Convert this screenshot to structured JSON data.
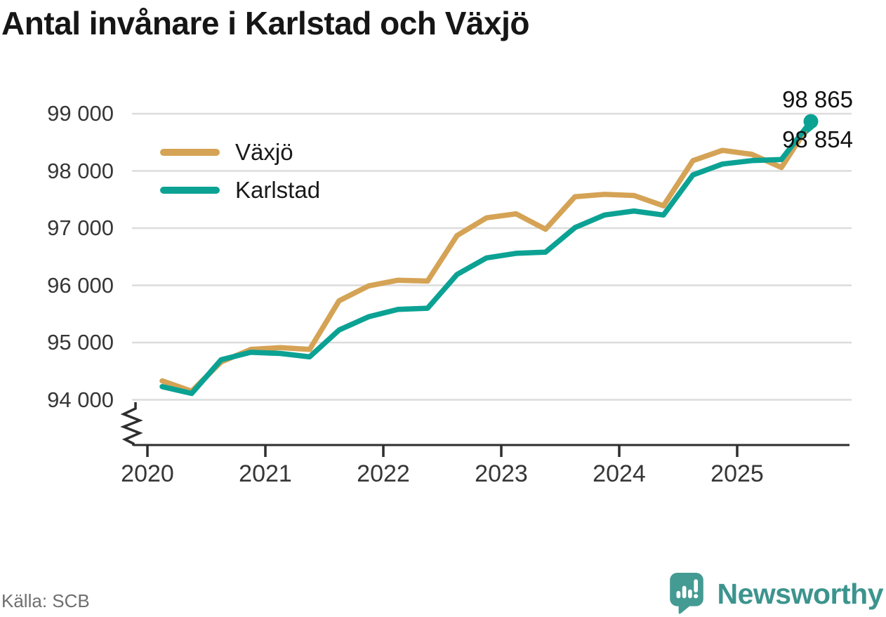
{
  "title": "Antal invånare i Karlstad och Växjö",
  "source": "Källa: SCB",
  "branding": {
    "name": "Newsworthy",
    "icon": "bar-chart-speech-bubble-icon",
    "color": "#3c948e"
  },
  "chart_data": {
    "type": "line",
    "title": "Antal invånare i Karlstad och Växjö",
    "grid": "horizontal",
    "grid_color": "#dcdcdc",
    "axis_color": "#2e2e2e",
    "legend_position": "top-left",
    "x_axis": {
      "ticks": [
        2020,
        2021,
        2022,
        2023,
        2024,
        2025
      ],
      "tick_labels": [
        "2020",
        "2021",
        "2022",
        "2023",
        "2024",
        "2025"
      ],
      "range": [
        2019.85,
        2025.97
      ]
    },
    "y_axis": {
      "ticks": [
        94000,
        95000,
        96000,
        97000,
        98000,
        99000
      ],
      "tick_labels": [
        "94 000",
        "95 000",
        "96 000",
        "97 000",
        "98 000",
        "99 000"
      ],
      "range_shown": [
        94000,
        99000
      ],
      "axis_break_at_bottom": true
    },
    "x": [
      2020.125,
      2020.375,
      2020.625,
      2020.875,
      2021.125,
      2021.375,
      2021.625,
      2021.875,
      2022.125,
      2022.375,
      2022.625,
      2022.875,
      2023.125,
      2023.375,
      2023.625,
      2023.875,
      2024.125,
      2024.375,
      2024.625,
      2024.875,
      2025.125,
      2025.375,
      2025.625
    ],
    "series": [
      {
        "name": "Växjö",
        "color": "#d5a355",
        "values": [
          94330,
          94150,
          94660,
          94880,
          94910,
          94880,
          95730,
          95990,
          96090,
          96075,
          96870,
          97180,
          97250,
          96980,
          97550,
          97590,
          97570,
          97390,
          98180,
          98360,
          98290,
          98060,
          98854
        ]
      },
      {
        "name": "Karlstad",
        "color": "#0ba294",
        "end_dot": true,
        "values": [
          94230,
          94110,
          94700,
          94830,
          94810,
          94750,
          95220,
          95450,
          95580,
          95600,
          96190,
          96480,
          96560,
          96580,
          97010,
          97230,
          97300,
          97230,
          97930,
          98120,
          98180,
          98200,
          98865
        ]
      }
    ],
    "end_labels": [
      {
        "series": "Karlstad",
        "text": "98 865",
        "value": 98865
      },
      {
        "series": "Växjö",
        "text": "98 854",
        "value": 98854
      }
    ]
  }
}
